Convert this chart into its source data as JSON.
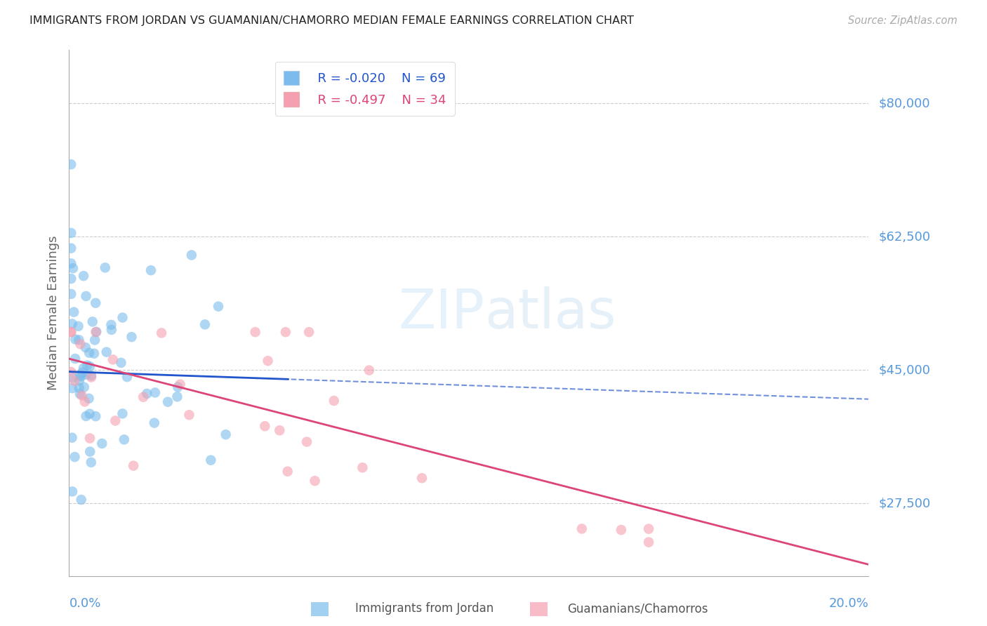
{
  "title": "IMMIGRANTS FROM JORDAN VS GUAMANIAN/CHAMORRO MEDIAN FEMALE EARNINGS CORRELATION CHART",
  "source": "Source: ZipAtlas.com",
  "ylabel": "Median Female Earnings",
  "legend1_r": "R = -0.020",
  "legend1_n": "N = 69",
  "legend2_r": "R = -0.497",
  "legend2_n": "N = 34",
  "legend1_label": "Immigrants from Jordan",
  "legend2_label": "Guamanians/Chamorros",
  "blue_color": "#7bbcec",
  "pink_color": "#f5a0b0",
  "line_blue": "#2255cc",
  "line_pink": "#dd4477",
  "tick_color": "#5599dd",
  "grid_color": "#cccccc",
  "watermark_color": "#ddeeff",
  "blue_line_solid_end": 0.055,
  "xlim": [
    0.0,
    0.2
  ],
  "ylim": [
    18000,
    87000
  ],
  "ytick_vals": [
    27500,
    45000,
    62500,
    80000
  ],
  "ytick_labels": [
    "$27,500",
    "$45,000",
    "$62,500",
    "$80,000"
  ],
  "blue_trend_intercept": 44800,
  "blue_trend_slope": -18000,
  "pink_trend_intercept": 46500,
  "pink_trend_slope": -135000
}
